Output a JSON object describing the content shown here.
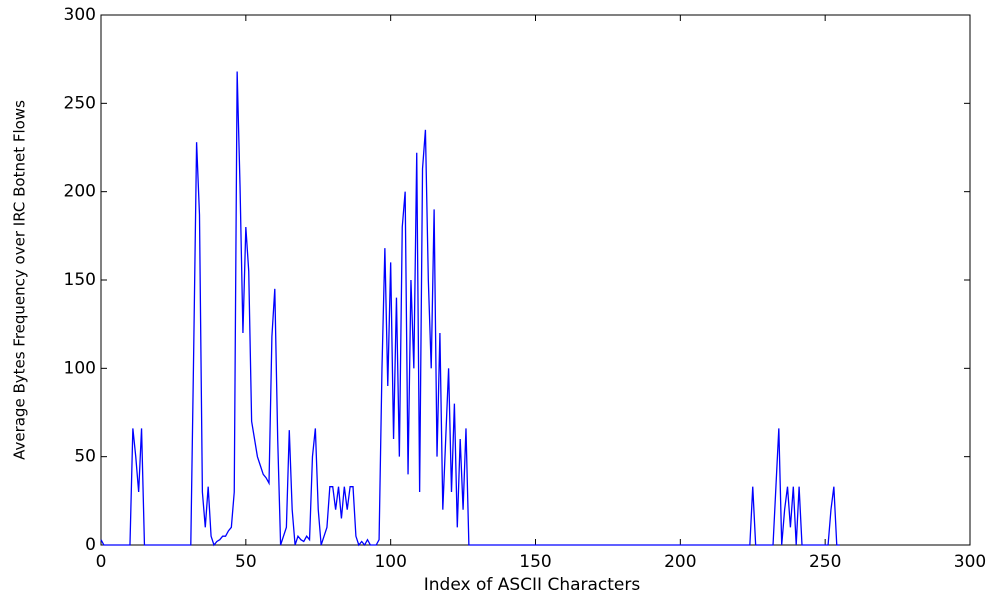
{
  "chart_data": {
    "type": "line",
    "xlabel": "Index of ASCII Characters",
    "ylabel": "Average Bytes Frequency over IRC Botnet Flows",
    "color": "#0000ff",
    "grid": false,
    "xlim": [
      0,
      300
    ],
    "xticks": [
      0,
      50,
      100,
      150,
      200,
      250,
      300
    ],
    "ylim": [
      0,
      300
    ],
    "yticks": [
      0,
      50,
      100,
      150,
      200,
      250,
      300
    ],
    "x": [
      0,
      1,
      2,
      3,
      4,
      5,
      6,
      7,
      8,
      9,
      10,
      11,
      12,
      13,
      14,
      15,
      16,
      17,
      18,
      19,
      20,
      21,
      22,
      23,
      24,
      25,
      26,
      27,
      28,
      29,
      30,
      31,
      32,
      33,
      34,
      35,
      36,
      37,
      38,
      39,
      40,
      41,
      42,
      43,
      44,
      45,
      46,
      47,
      48,
      49,
      50,
      51,
      52,
      53,
      54,
      55,
      56,
      57,
      58,
      59,
      60,
      61,
      62,
      63,
      64,
      65,
      66,
      67,
      68,
      69,
      70,
      71,
      72,
      73,
      74,
      75,
      76,
      77,
      78,
      79,
      80,
      81,
      82,
      83,
      84,
      85,
      86,
      87,
      88,
      89,
      90,
      91,
      92,
      93,
      94,
      95,
      96,
      97,
      98,
      99,
      100,
      101,
      102,
      103,
      104,
      105,
      106,
      107,
      108,
      109,
      110,
      111,
      112,
      113,
      114,
      115,
      116,
      117,
      118,
      119,
      120,
      121,
      122,
      123,
      124,
      125,
      126,
      127,
      128,
      129,
      130,
      131,
      132,
      133,
      134,
      135,
      136,
      137,
      138,
      139,
      140,
      141,
      142,
      143,
      144,
      145,
      146,
      147,
      148,
      149,
      150,
      151,
      152,
      153,
      154,
      155,
      156,
      157,
      158,
      159,
      160,
      161,
      162,
      163,
      164,
      165,
      166,
      167,
      168,
      169,
      170,
      171,
      172,
      173,
      174,
      175,
      176,
      177,
      178,
      179,
      180,
      181,
      182,
      183,
      184,
      185,
      186,
      187,
      188,
      189,
      190,
      191,
      192,
      193,
      194,
      195,
      196,
      197,
      198,
      199,
      200,
      201,
      202,
      203,
      204,
      205,
      206,
      207,
      208,
      209,
      210,
      211,
      212,
      213,
      214,
      215,
      216,
      217,
      218,
      219,
      220,
      221,
      222,
      223,
      224,
      225,
      226,
      227,
      228,
      229,
      230,
      231,
      232,
      233,
      234,
      235,
      236,
      237,
      238,
      239,
      240,
      241,
      242,
      243,
      244,
      245,
      246,
      247,
      248,
      249,
      250,
      251,
      252,
      253,
      254,
      255
    ],
    "values": [
      3,
      0,
      0,
      0,
      0,
      0,
      0,
      0,
      0,
      0,
      0,
      66,
      50,
      30,
      66,
      0,
      0,
      0,
      0,
      0,
      0,
      0,
      0,
      0,
      0,
      0,
      0,
      0,
      0,
      0,
      0,
      0,
      110,
      228,
      187,
      30,
      10,
      33,
      5,
      0,
      2,
      3,
      5,
      5,
      8,
      10,
      30,
      268,
      203,
      120,
      180,
      155,
      70,
      60,
      50,
      45,
      40,
      38,
      35,
      118,
      145,
      60,
      0,
      5,
      10,
      65,
      20,
      0,
      5,
      3,
      2,
      5,
      3,
      50,
      66,
      20,
      0,
      5,
      10,
      33,
      33,
      20,
      33,
      15,
      33,
      20,
      33,
      33,
      5,
      0,
      2,
      0,
      3,
      0,
      0,
      0,
      3,
      100,
      168,
      90,
      160,
      60,
      140,
      50,
      180,
      200,
      40,
      150,
      100,
      222,
      30,
      213,
      235,
      150,
      100,
      190,
      50,
      120,
      20,
      60,
      100,
      30,
      80,
      10,
      60,
      20,
      66,
      0,
      0,
      0,
      0,
      0,
      0,
      0,
      0,
      0,
      0,
      0,
      0,
      0,
      0,
      0,
      0,
      0,
      0,
      0,
      0,
      0,
      0,
      0,
      0,
      0,
      0,
      0,
      0,
      0,
      0,
      0,
      0,
      0,
      0,
      0,
      0,
      0,
      0,
      0,
      0,
      0,
      0,
      0,
      0,
      0,
      0,
      0,
      0,
      0,
      0,
      0,
      0,
      0,
      0,
      0,
      0,
      0,
      0,
      0,
      0,
      0,
      0,
      0,
      0,
      0,
      0,
      0,
      0,
      0,
      0,
      0,
      0,
      0,
      0,
      0,
      0,
      0,
      0,
      0,
      0,
      0,
      0,
      0,
      0,
      0,
      0,
      0,
      0,
      0,
      0,
      0,
      0,
      0,
      0,
      0,
      0,
      0,
      0,
      33,
      0,
      0,
      0,
      0,
      0,
      0,
      0,
      33,
      66,
      0,
      20,
      33,
      10,
      33,
      0,
      33,
      0,
      0,
      0,
      0,
      0,
      0,
      0,
      0,
      0,
      0,
      20,
      33,
      0,
      0
    ]
  }
}
